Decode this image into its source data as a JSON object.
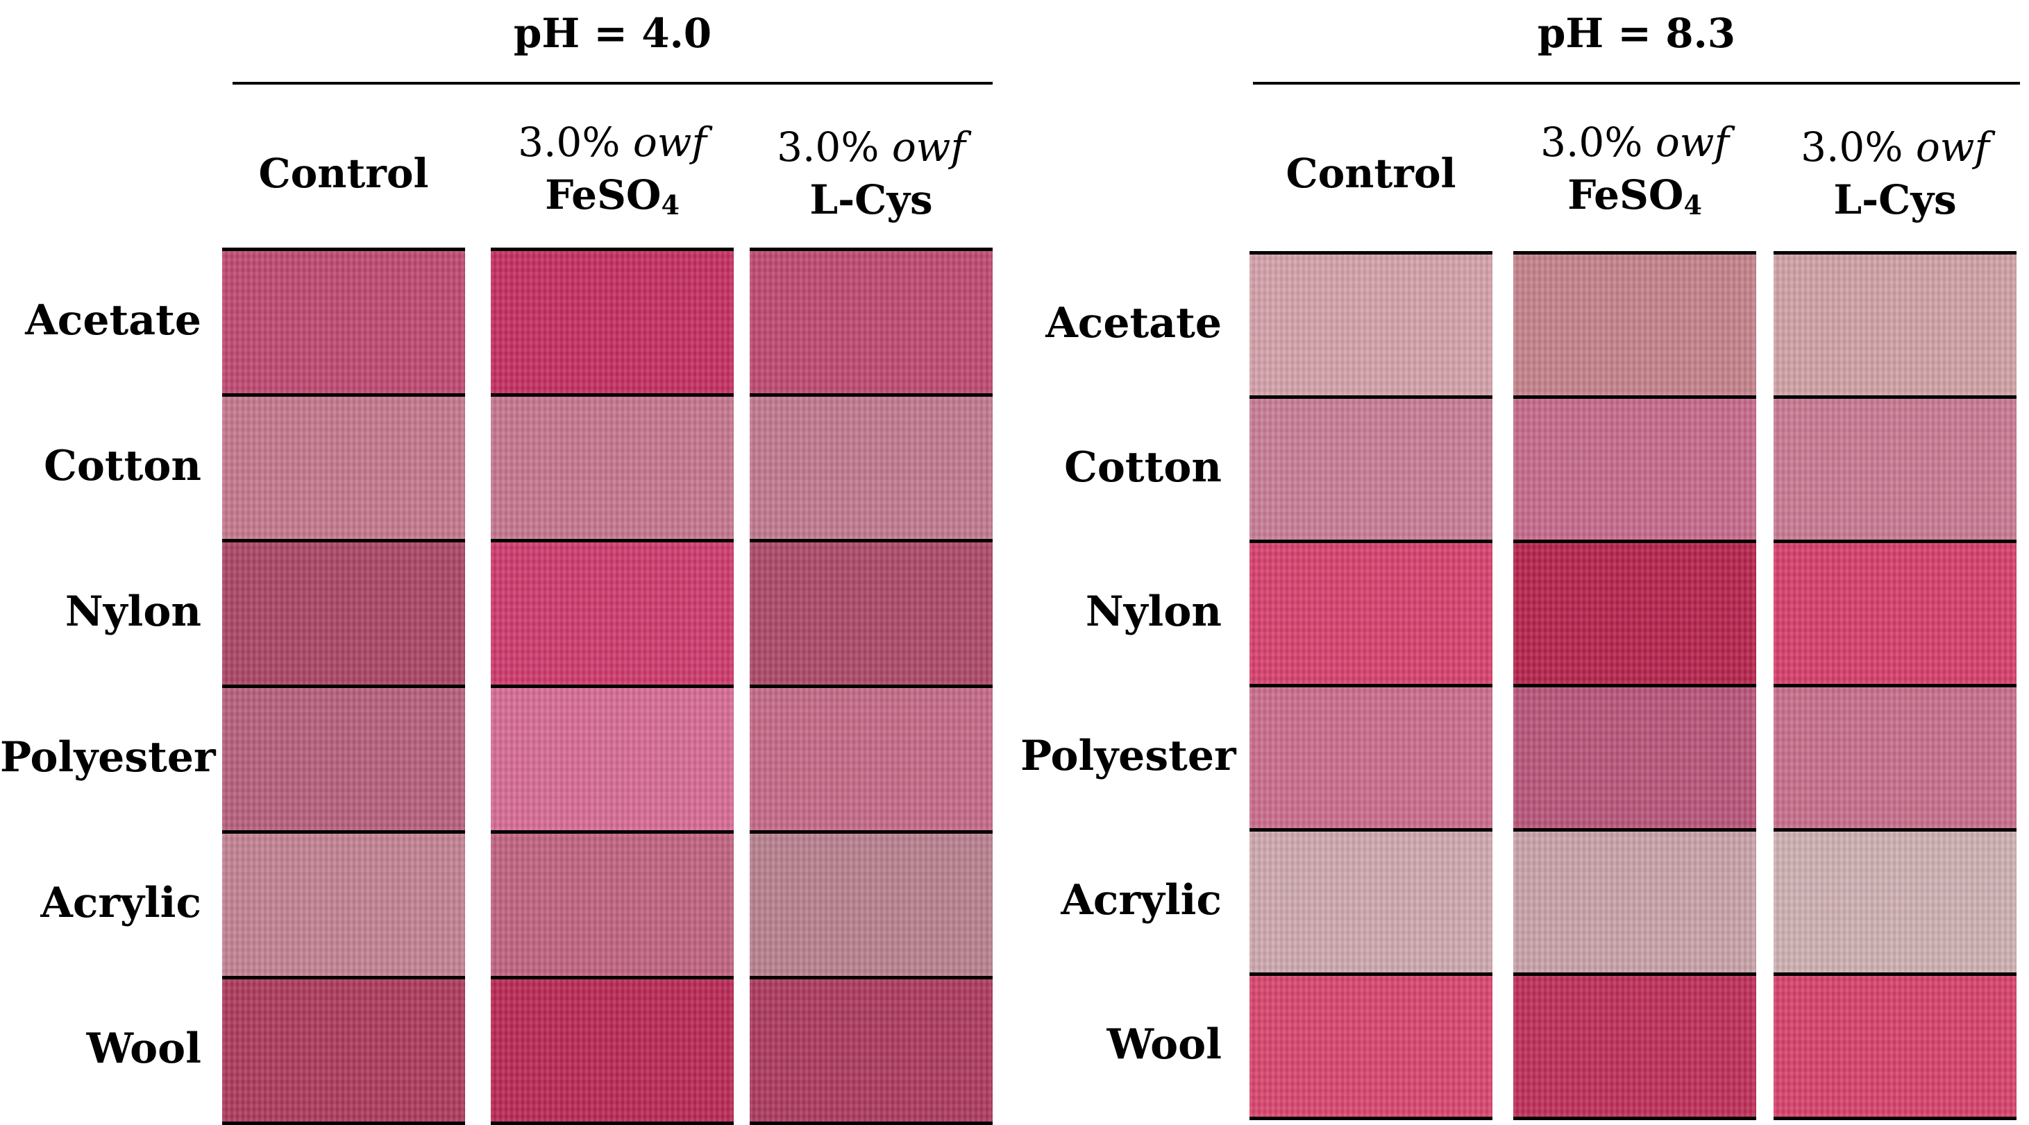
{
  "panels": [
    {
      "title": "pH = 4.0",
      "columns": [
        {
          "line1": "Control",
          "line1_italic": "",
          "line2": "",
          "line2_sub": ""
        },
        {
          "line1": "3.0% ",
          "line1_italic": "owf",
          "line2": "FeSO",
          "line2_sub": "4"
        },
        {
          "line1": "3.0% ",
          "line1_italic": "owf",
          "line2": "L-Cys",
          "line2_sub": ""
        }
      ],
      "rows": [
        {
          "label": "Acetate",
          "colors": [
            "#c04a72",
            "#c52f62",
            "#c04a72"
          ]
        },
        {
          "label": "Cotton",
          "colors": [
            "#c5798e",
            "#c6778f",
            "#c27a90"
          ]
        },
        {
          "label": "Nylon",
          "colors": [
            "#ab4766",
            "#cf3b6e",
            "#ad4a69"
          ]
        },
        {
          "label": "Polyester",
          "colors": [
            "#b8607e",
            "#d86c95",
            "#c56a88"
          ]
        },
        {
          "label": "Acrylic",
          "colors": [
            "#c38394",
            "#c16482",
            "#b98190"
          ]
        },
        {
          "label": "Wool",
          "colors": [
            "#ae3b5e",
            "#bb2a56",
            "#ad3b60"
          ]
        }
      ]
    },
    {
      "title": "pH = 8.3",
      "columns": [
        {
          "line1": "Control",
          "line1_italic": "",
          "line2": "",
          "line2_sub": ""
        },
        {
          "line1": "3.0% ",
          "line1_italic": "owf",
          "line2": "FeSO",
          "line2_sub": "4"
        },
        {
          "line1": "3.0% ",
          "line1_italic": "owf",
          "line2": "L-Cys",
          "line2_sub": ""
        }
      ],
      "rows": [
        {
          "label": "Acetate",
          "colors": [
            "#d5a2ab",
            "#c5838c",
            "#d1a2a6"
          ]
        },
        {
          "label": "Cotton",
          "colors": [
            "#c87e97",
            "#c66b8c",
            "#c97a94"
          ]
        },
        {
          "label": "Nylon",
          "colors": [
            "#d8426f",
            "#b7254e",
            "#d73f6b"
          ]
        },
        {
          "label": "Polyester",
          "colors": [
            "#cb6e8e",
            "#b9567b",
            "#c8708c"
          ]
        },
        {
          "label": "Acrylic",
          "colors": [
            "#cfa9b0",
            "#c9a3aa",
            "#cfb1b3"
          ]
        },
        {
          "label": "Wool",
          "colors": [
            "#d9476f",
            "#bf2f5a",
            "#d8426c"
          ]
        }
      ]
    }
  ]
}
